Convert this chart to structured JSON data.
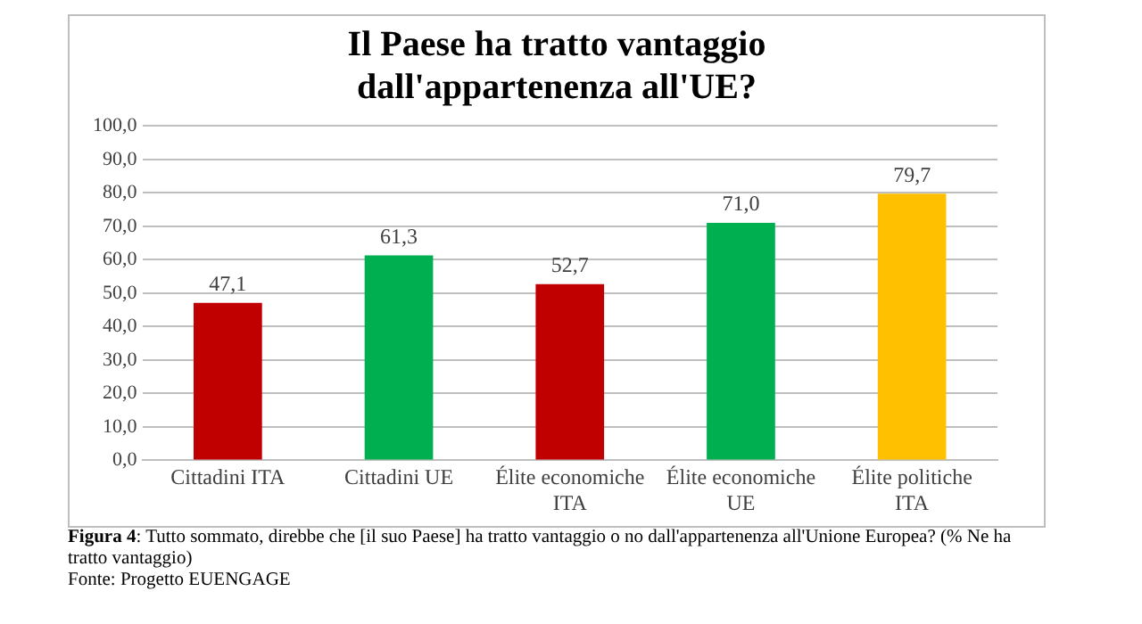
{
  "chart_data": {
    "type": "bar",
    "title": "Il Paese ha tratto vantaggio dall'appartenenza all'UE?",
    "categories": [
      "Cittadini ITA",
      "Cittadini UE",
      "Élite economiche ITA",
      "Élite economiche UE",
      "Élite politiche ITA"
    ],
    "values": [
      47.1,
      61.3,
      52.7,
      71.0,
      79.7
    ],
    "colors": [
      "#c00000",
      "#00b050",
      "#c00000",
      "#00b050",
      "#ffc000"
    ],
    "value_labels": [
      "47,1",
      "61,3",
      "52,7",
      "71,0",
      "79,7"
    ],
    "ylim": [
      0,
      100
    ],
    "yticks": [
      {
        "value": 0,
        "label": "0,0"
      },
      {
        "value": 10,
        "label": "10,0"
      },
      {
        "value": 20,
        "label": "20,0"
      },
      {
        "value": 30,
        "label": "30,0"
      },
      {
        "value": 40,
        "label": "40,0"
      },
      {
        "value": 50,
        "label": "50,0"
      },
      {
        "value": 60,
        "label": "60,0"
      },
      {
        "value": 70,
        "label": "70,0"
      },
      {
        "value": 80,
        "label": "80,0"
      },
      {
        "value": 90,
        "label": "90,0"
      },
      {
        "value": 100,
        "label": "100,0"
      }
    ],
    "grid": "y",
    "annotations": [
      "Figura 4: Tutto sommato, direbbe che [il suo Paese] ha tratto vantaggio o no dall'appartenenza all'Unione Europea? (% Ne ha tratto vantaggio)",
      "Fonte: Progetto EUENGAGE"
    ]
  }
}
